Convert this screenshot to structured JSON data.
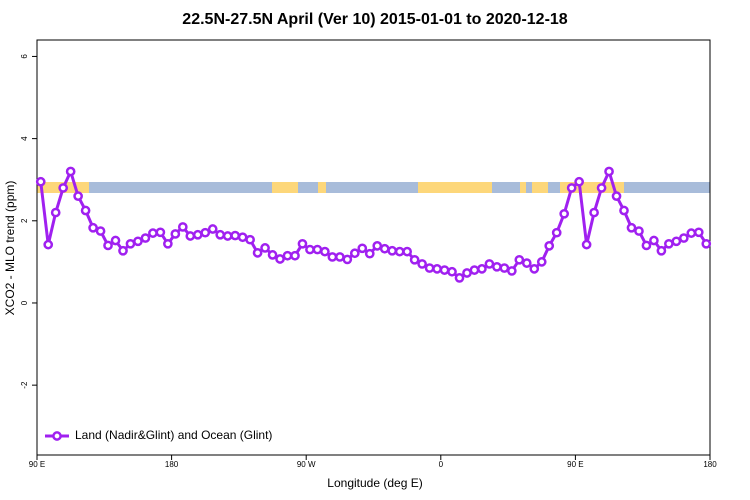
{
  "chart_data": {
    "type": "line",
    "title": "22.5N-27.5N April (Ver 10)   2015-01-01 to 2020-12-18",
    "x_label": "Longitude (deg E)",
    "y_label": "XCO2 - MLO trend (ppm)",
    "xlim": [
      90,
      540
    ],
    "ylim": [
      -3.7,
      6.4
    ],
    "xticks": [
      {
        "value": 90,
        "label": "90 E"
      },
      180,
      {
        "value": 270,
        "label": "90 W"
      },
      {
        "value": 360,
        "label": "0"
      },
      {
        "value": 450,
        "label": "90 E"
      },
      {
        "value": 540,
        "label": "180"
      }
    ],
    "yticks": [
      -2,
      0,
      2,
      4,
      6
    ],
    "legend": "bottomleft",
    "x": [
      92.5,
      97.5,
      102.5,
      107.5,
      112.5,
      117.5,
      122.5,
      127.5,
      132.5,
      137.5,
      142.5,
      147.5,
      152.5,
      157.5,
      162.5,
      167.5,
      172.5,
      177.5,
      182.5,
      187.5,
      192.5,
      197.5,
      202.5,
      207.5,
      212.5,
      217.5,
      222.5,
      227.5,
      232.5,
      237.5,
      242.5,
      247.5,
      252.5,
      257.5,
      262.5,
      267.5,
      272.5,
      277.5,
      282.5,
      287.5,
      292.5,
      297.5,
      302.5,
      307.5,
      312.5,
      317.5,
      322.5,
      327.5,
      332.5,
      337.5,
      342.5,
      347.5,
      352.5,
      357.5,
      362.5,
      367.5,
      372.5,
      377.5,
      382.5,
      387.5,
      392.5,
      397.5,
      402.5,
      407.5,
      412.5,
      417.5,
      422.5,
      427.5,
      432.5,
      437.5,
      442.5,
      447.5,
      452.5,
      457.5,
      462.5,
      467.5,
      472.5,
      477.5,
      482.5,
      487.5,
      492.5,
      497.5,
      502.5,
      507.5,
      512.5,
      517.5,
      522.5,
      527.5,
      532.5,
      537.5
    ],
    "series": [
      {
        "name": "Land (Nadir&Glint) and Ocean (Glint)",
        "color": "#a020f0",
        "values": [
          2.95,
          1.42,
          2.2,
          2.8,
          3.2,
          2.6,
          2.25,
          1.83,
          1.75,
          1.4,
          1.52,
          1.27,
          1.44,
          1.5,
          1.58,
          1.7,
          1.72,
          1.44,
          1.68,
          1.85,
          1.63,
          1.66,
          1.71,
          1.8,
          1.66,
          1.63,
          1.64,
          1.6,
          1.54,
          1.22,
          1.34,
          1.17,
          1.07,
          1.15,
          1.15,
          1.44,
          1.3,
          1.3,
          1.25,
          1.12,
          1.12,
          1.06,
          1.21,
          1.33,
          1.2,
          1.39,
          1.32,
          1.27,
          1.25,
          1.25,
          1.05,
          0.95,
          0.85,
          0.83,
          0.8,
          0.76,
          0.61,
          0.73,
          0.8,
          0.83,
          0.95,
          0.88,
          0.85,
          0.78,
          1.05,
          0.97,
          0.83,
          1.0,
          1.39,
          1.71,
          2.17,
          2.8,
          2.95,
          1.42,
          2.2,
          2.8,
          3.2,
          2.6,
          2.25,
          1.83,
          1.75,
          1.4,
          1.52,
          1.27,
          1.44,
          1.5,
          1.58,
          1.7,
          1.72,
          1.44
        ]
      }
    ]
  }
}
